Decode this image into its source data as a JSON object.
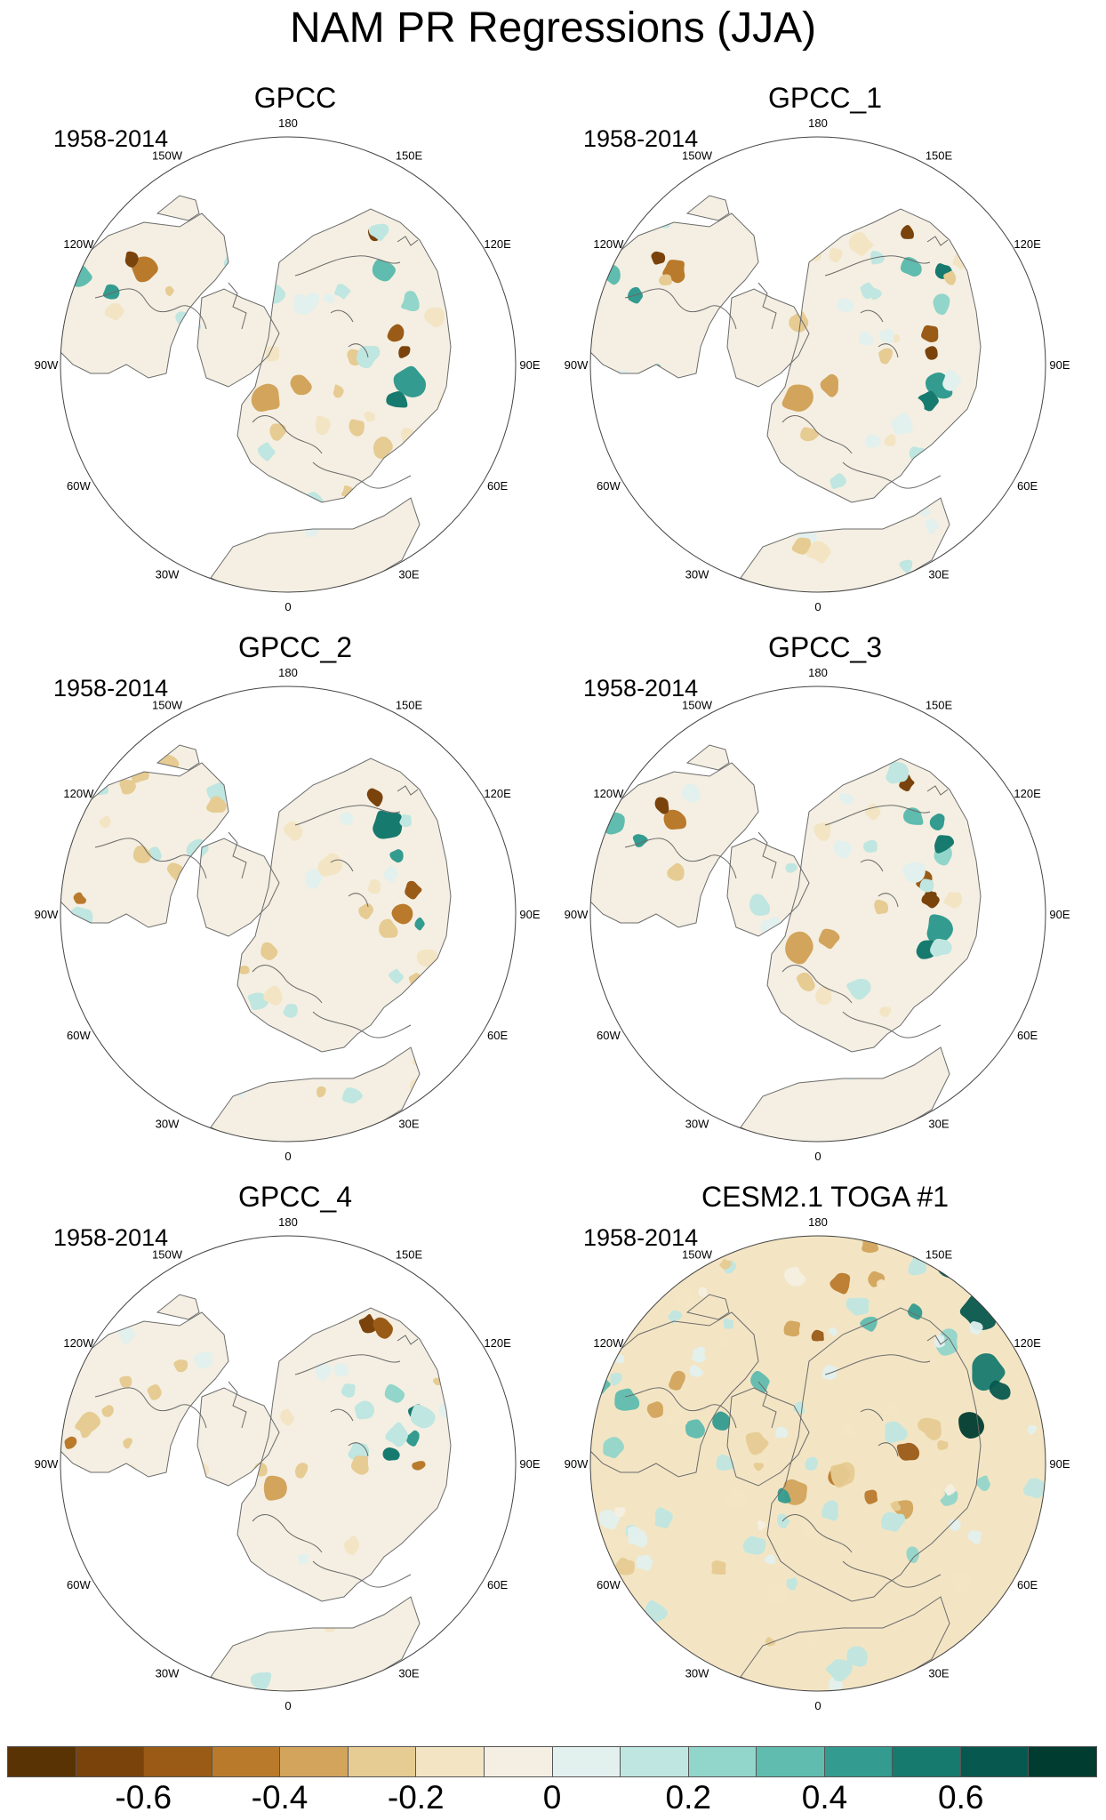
{
  "title": "NAM PR Regressions (JJA)",
  "panels": [
    {
      "name": "GPCC",
      "period": "1958-2014",
      "pattern": "obs0"
    },
    {
      "name": "GPCC_1",
      "period": "1958-2014",
      "pattern": "obs1"
    },
    {
      "name": "GPCC_2",
      "period": "1958-2014",
      "pattern": "obs2"
    },
    {
      "name": "GPCC_3",
      "period": "1958-2014",
      "pattern": "obs3"
    },
    {
      "name": "GPCC_4",
      "period": "1958-2014",
      "pattern": "obs4"
    },
    {
      "name": "CESM2.1 TOGA #1",
      "period": "1958-2014",
      "pattern": "model"
    }
  ],
  "longitude_labels": [
    "180",
    "150E",
    "120E",
    "90E",
    "60E",
    "30E",
    "0",
    "30W",
    "60W",
    "90W",
    "120W",
    "150W"
  ],
  "colorbar": {
    "colors": [
      "#5a3305",
      "#7a430c",
      "#9a5b17",
      "#b97a2c",
      "#d2a45c",
      "#e6cb92",
      "#f3e5c4",
      "#f4efe2",
      "#e2f0ee",
      "#bfe6e0",
      "#92d5ca",
      "#5fbcaf",
      "#339b8f",
      "#177a6f",
      "#07594f",
      "#003c30"
    ],
    "tick_labels": [
      "-0.6",
      "-0.4",
      "-0.2",
      "0",
      "0.2",
      "0.4",
      "0.6"
    ],
    "tick_values": [
      -0.6,
      -0.4,
      -0.2,
      0,
      0.2,
      0.4,
      0.6
    ],
    "range": [
      -0.8,
      0.8
    ]
  }
}
